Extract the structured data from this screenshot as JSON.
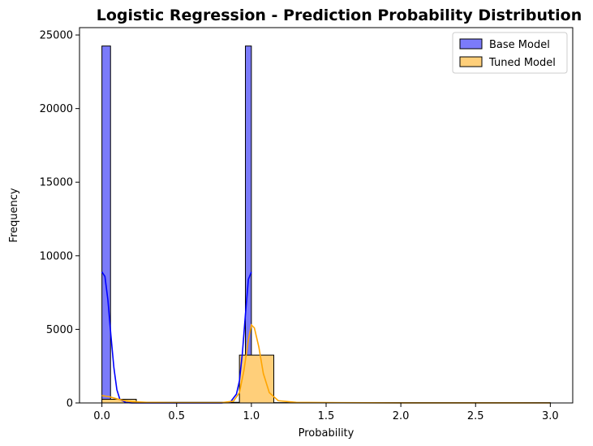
{
  "chart_data": {
    "type": "histogram",
    "title": "Logistic Regression - Prediction Probability Distribution",
    "xlabel": "Probability",
    "ylabel": "Frequency",
    "xlim": [
      -0.15,
      3.15
    ],
    "ylim": [
      0,
      25500
    ],
    "xticks": [
      0.0,
      0.5,
      1.0,
      1.5,
      2.0,
      2.5,
      3.0
    ],
    "xtick_labels": [
      "0.0",
      "0.5",
      "1.0",
      "1.5",
      "2.0",
      "2.5",
      "3.0"
    ],
    "yticks": [
      0,
      5000,
      10000,
      15000,
      20000,
      25000
    ],
    "ytick_labels": [
      "0",
      "5000",
      "10000",
      "15000",
      "20000",
      "25000"
    ],
    "legend_position": "top-right",
    "grid": false,
    "series": [
      {
        "name": "Base Model",
        "color": "#0000ff",
        "fill": "#7b7bfa",
        "bins": [
          {
            "x0": 0.0,
            "x1": 0.0576,
            "count": 24250
          },
          {
            "x0": 0.0576,
            "x1": 0.96,
            "count": 30
          },
          {
            "x0": 0.96,
            "x1": 1.0,
            "count": 24250
          }
        ],
        "kde": [
          [
            0.0,
            8900
          ],
          [
            0.02,
            8600
          ],
          [
            0.04,
            7000
          ],
          [
            0.06,
            4600
          ],
          [
            0.08,
            2400
          ],
          [
            0.1,
            900
          ],
          [
            0.12,
            250
          ],
          [
            0.16,
            30
          ],
          [
            0.2,
            0
          ],
          [
            0.8,
            0
          ],
          [
            0.86,
            60
          ],
          [
            0.9,
            600
          ],
          [
            0.92,
            1500
          ],
          [
            0.94,
            3400
          ],
          [
            0.96,
            6000
          ],
          [
            0.98,
            8400
          ],
          [
            1.0,
            8900
          ]
        ]
      },
      {
        "name": "Tuned Model",
        "color": "#ffa500",
        "fill": "#ffcf7a",
        "bins": [
          {
            "x0": 0.0,
            "x1": 0.23,
            "count": 250
          },
          {
            "x0": 0.23,
            "x1": 0.92,
            "count": 40
          },
          {
            "x0": 0.92,
            "x1": 1.15,
            "count": 3250
          },
          {
            "x0": 1.15,
            "x1": 3.0,
            "count": 20
          }
        ],
        "kde": [
          [
            0.0,
            500
          ],
          [
            0.05,
            420
          ],
          [
            0.1,
            280
          ],
          [
            0.15,
            160
          ],
          [
            0.2,
            90
          ],
          [
            0.3,
            40
          ],
          [
            0.5,
            20
          ],
          [
            0.8,
            20
          ],
          [
            0.88,
            120
          ],
          [
            0.92,
            700
          ],
          [
            0.95,
            2200
          ],
          [
            0.98,
            4300
          ],
          [
            1.0,
            5300
          ],
          [
            1.02,
            5100
          ],
          [
            1.05,
            3800
          ],
          [
            1.08,
            2000
          ],
          [
            1.12,
            700
          ],
          [
            1.18,
            150
          ],
          [
            1.3,
            40
          ],
          [
            1.6,
            15
          ],
          [
            2.0,
            5
          ],
          [
            3.0,
            0
          ]
        ]
      }
    ]
  }
}
